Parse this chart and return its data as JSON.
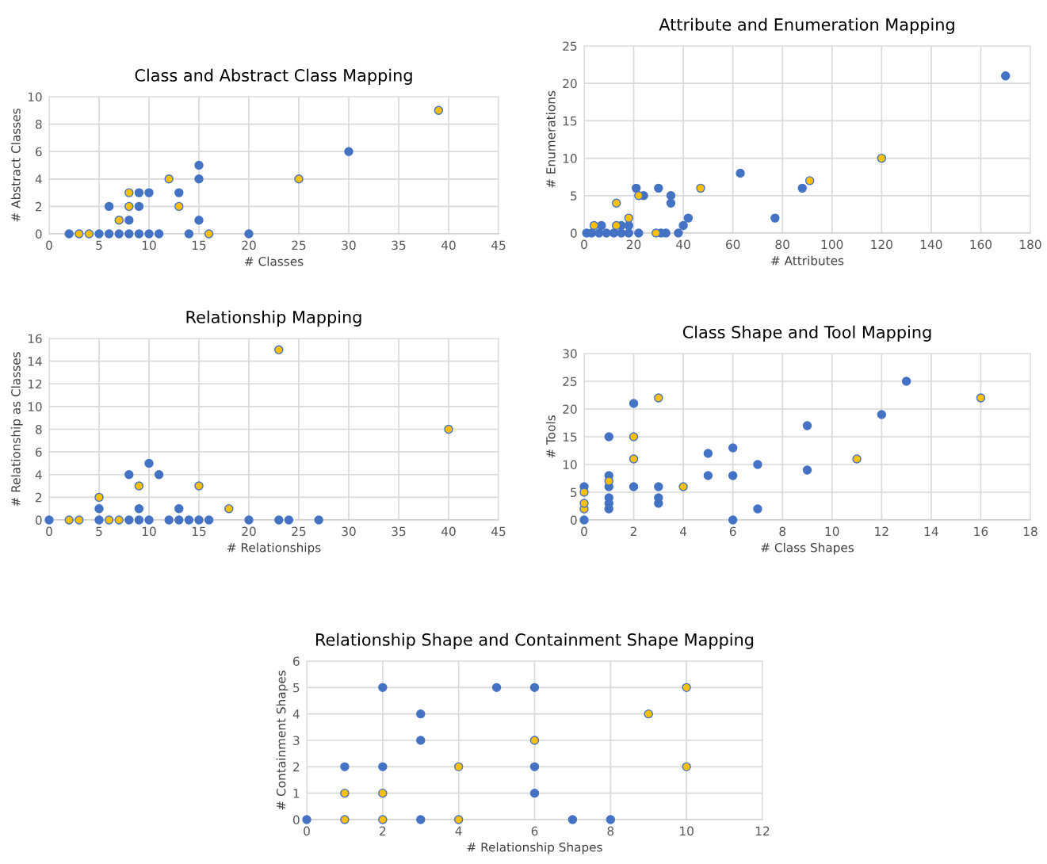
{
  "chart_data": [
    {
      "type": "scatter",
      "title": "Class and Abstract Class Mapping",
      "xlabel": "# Classes",
      "ylabel": "# Abstract Classes",
      "xlim": [
        0,
        45
      ],
      "xticks": [
        0,
        5,
        10,
        15,
        20,
        25,
        30,
        35,
        40,
        45
      ],
      "ylim": [
        0,
        10
      ],
      "yticks": [
        0,
        2,
        4,
        6,
        8,
        10
      ],
      "grid": true,
      "marker": "circle",
      "series": [
        {
          "color": "#4472c4",
          "x": [
            2,
            5,
            6,
            7,
            8,
            9,
            10,
            11,
            14,
            20,
            6,
            8,
            9,
            9,
            10,
            13,
            15,
            15,
            15,
            30
          ],
          "values": [
            0,
            0,
            0,
            0,
            0,
            0,
            0,
            0,
            0,
            0,
            2,
            1,
            2,
            3,
            3,
            3,
            5,
            4,
            1,
            6
          ]
        },
        {
          "color": "#ffc000",
          "x": [
            3,
            4,
            16,
            7,
            8,
            8,
            12,
            13,
            25,
            39
          ],
          "values": [
            0,
            0,
            0,
            1,
            2,
            3,
            4,
            2,
            4,
            9
          ]
        }
      ]
    },
    {
      "type": "scatter",
      "title": "Attribute and Enumeration Mapping",
      "xlabel": "# Attributes",
      "ylabel": "# Enumerations",
      "xlim": [
        0,
        180
      ],
      "xticks": [
        0,
        20,
        40,
        60,
        80,
        100,
        120,
        140,
        160,
        180
      ],
      "ylim": [
        0,
        25
      ],
      "yticks": [
        0,
        5,
        10,
        15,
        20,
        25
      ],
      "grid": true,
      "marker": "circle",
      "series": [
        {
          "color": "#4472c4",
          "x": [
            1,
            3,
            6,
            9,
            12,
            15,
            18,
            22,
            31,
            33,
            38,
            7,
            15,
            18,
            40,
            42,
            21,
            30,
            24,
            35,
            35,
            63,
            77,
            88,
            170
          ],
          "values": [
            0,
            0,
            0,
            0,
            0,
            0,
            0,
            0,
            0,
            0,
            0,
            1,
            1,
            1,
            1,
            2,
            6,
            6,
            5,
            5,
            4,
            8,
            2,
            6,
            21
          ]
        },
        {
          "color": "#ffc000",
          "x": [
            29,
            4,
            13,
            18,
            13,
            22,
            47,
            91,
            120
          ],
          "values": [
            0,
            1,
            1,
            2,
            4,
            5,
            6,
            7,
            10
          ]
        }
      ]
    },
    {
      "type": "scatter",
      "title": "Relationship Mapping",
      "xlabel": "# Relationships",
      "ylabel": "# Relationship as Classes",
      "xlim": [
        0,
        45
      ],
      "xticks": [
        0,
        5,
        10,
        15,
        20,
        25,
        30,
        35,
        40,
        45
      ],
      "ylim": [
        0,
        16
      ],
      "yticks": [
        0,
        2,
        4,
        6,
        8,
        10,
        12,
        14,
        16
      ],
      "grid": true,
      "marker": "circle",
      "series": [
        {
          "color": "#4472c4",
          "x": [
            0,
            5,
            8,
            9,
            10,
            12,
            13,
            14,
            15,
            16,
            20,
            23,
            24,
            27,
            5,
            9,
            13,
            8,
            11,
            10
          ],
          "values": [
            0,
            0,
            0,
            0,
            0,
            0,
            0,
            0,
            0,
            0,
            0,
            0,
            0,
            0,
            1,
            1,
            1,
            4,
            4,
            5
          ]
        },
        {
          "color": "#ffc000",
          "x": [
            2,
            3,
            6,
            7,
            18,
            5,
            9,
            15,
            23,
            40
          ],
          "values": [
            0,
            0,
            0,
            0,
            1,
            2,
            3,
            3,
            15,
            8
          ]
        }
      ]
    },
    {
      "type": "scatter",
      "title": "Class Shape and Tool Mapping",
      "xlabel": "# Class Shapes",
      "ylabel": "# Tools",
      "xlim": [
        0,
        18
      ],
      "xticks": [
        0,
        2,
        4,
        6,
        8,
        10,
        12,
        14,
        16,
        18
      ],
      "ylim": [
        0,
        30
      ],
      "yticks": [
        0,
        5,
        10,
        15,
        20,
        25,
        30
      ],
      "grid": true,
      "marker": "circle",
      "series": [
        {
          "color": "#4472c4",
          "x": [
            0,
            0,
            1,
            1,
            1,
            1,
            1,
            1,
            2,
            2,
            3,
            3,
            3,
            5,
            5,
            6,
            6,
            6,
            7,
            7,
            9,
            9,
            12,
            13
          ],
          "values": [
            0,
            6,
            2,
            3,
            4,
            6,
            8,
            15,
            6,
            21,
            3,
            4,
            6,
            12,
            8,
            13,
            8,
            0,
            10,
            2,
            17,
            9,
            19,
            25
          ]
        },
        {
          "color": "#ffc000",
          "x": [
            0,
            0,
            0,
            1,
            2,
            2,
            3,
            4,
            11,
            16
          ],
          "values": [
            2,
            3,
            5,
            7,
            11,
            15,
            22,
            6,
            11,
            22
          ]
        }
      ]
    },
    {
      "type": "scatter",
      "title": "Relationship Shape and Containment Shape Mapping",
      "xlabel": "# Relationship Shapes",
      "ylabel": "# Containment Shapes",
      "xlim": [
        0,
        12
      ],
      "xticks": [
        0,
        2,
        4,
        6,
        8,
        10,
        12
      ],
      "ylim": [
        0,
        6
      ],
      "yticks": [
        0,
        1,
        2,
        3,
        4,
        5,
        6
      ],
      "grid": true,
      "marker": "circle",
      "series": [
        {
          "color": "#4472c4",
          "x": [
            0,
            3,
            7,
            8,
            1,
            2,
            2,
            3,
            3,
            5,
            6,
            6,
            6
          ],
          "values": [
            0,
            0,
            0,
            0,
            2,
            2,
            5,
            4,
            3,
            5,
            5,
            2,
            1
          ]
        },
        {
          "color": "#ffc000",
          "x": [
            1,
            2,
            4,
            1,
            2,
            4,
            6,
            9,
            10,
            10
          ],
          "values": [
            0,
            0,
            0,
            1,
            1,
            2,
            3,
            4,
            5,
            2
          ]
        }
      ]
    }
  ]
}
